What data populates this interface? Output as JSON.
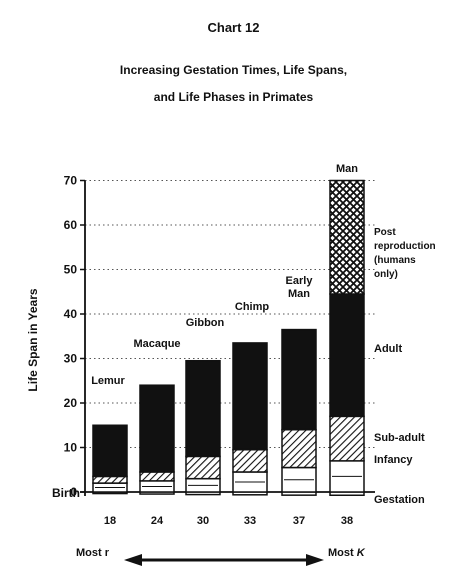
{
  "header": {
    "chart_number": "Chart 12",
    "title_line1": "Increasing Gestation Times, Life Spans,",
    "title_line2": "and Life Phases in Primates"
  },
  "chart_data": {
    "type": "bar",
    "ylabel": "Life Span in Years",
    "ylim": [
      0,
      70
    ],
    "y_ticks": [
      0,
      10,
      20,
      30,
      40,
      50,
      60,
      70
    ],
    "birth_label": "Birth",
    "grid": "dotted horizontal",
    "categories": [
      "Lemur",
      "Macaque",
      "Gibbon",
      "Chimp",
      "Early Man",
      "Man"
    ],
    "gestation_weeks": [
      "18",
      "24",
      "30",
      "33",
      "37",
      "38"
    ],
    "phases": [
      "Gestation",
      "Infancy",
      "Sub-adult",
      "Adult",
      "Post reproduction (humans only)"
    ],
    "phase_labels": [
      "Gestation",
      "Infancy",
      "Sub-adult",
      "Adult",
      [
        "Post",
        "reproduction",
        "(humans",
        "only)"
      ]
    ],
    "gestation_years": [
      -0.35,
      -0.46,
      -0.58,
      -0.63,
      -0.71,
      -0.73
    ],
    "infancy_end": [
      2,
      2.5,
      3,
      4.5,
      5.5,
      7
    ],
    "subadult_end": [
      3.5,
      4.5,
      8,
      9.5,
      14,
      17
    ],
    "adult_end": [
      15,
      24,
      29.5,
      33.5,
      36.5,
      44.5
    ],
    "lifespan": [
      15,
      24,
      29.5,
      33.5,
      36.5,
      70
    ],
    "scale": {
      "left_label": "Most r",
      "right_label_prefix": "Most",
      "right_label_symbol": "K"
    }
  }
}
